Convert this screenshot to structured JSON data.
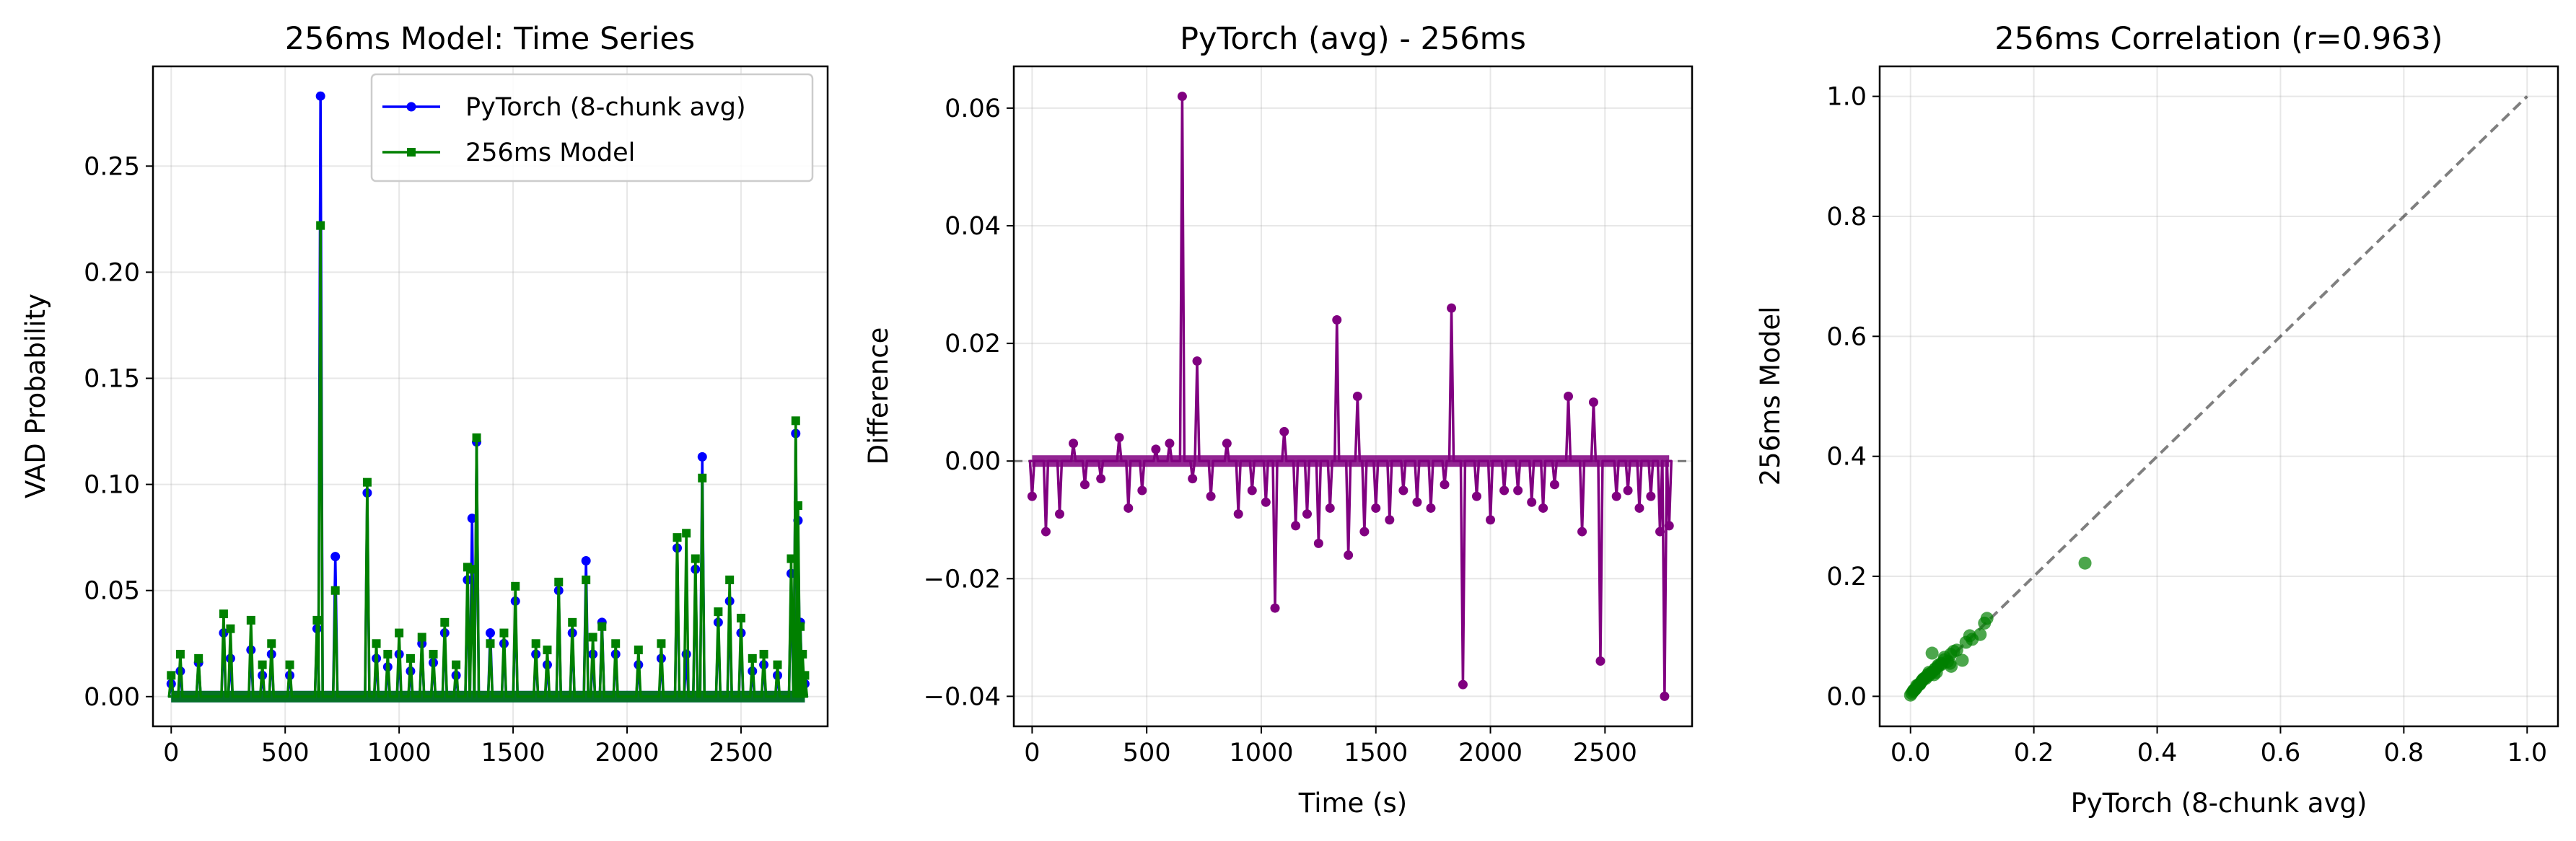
{
  "chart_data": [
    {
      "type": "line",
      "title": "256ms Model: Time Series",
      "xlabel": "",
      "ylabel": "VAD Probability",
      "xlim": [
        -80,
        2880
      ],
      "ylim": [
        -0.014,
        0.297
      ],
      "xticks": [
        0,
        500,
        1000,
        1500,
        2000,
        2500
      ],
      "xtick_labels": [
        "0",
        "500",
        "1000",
        "1500",
        "2000",
        "2500"
      ],
      "yticks": [
        0.0,
        0.05,
        0.1,
        0.15,
        0.2,
        0.25
      ],
      "ytick_labels": [
        "0.00",
        "0.05",
        "0.10",
        "0.15",
        "0.20",
        "0.25"
      ],
      "grid": true,
      "legend": "upper right",
      "series": [
        {
          "name": "PyTorch (8-chunk avg)",
          "color": "#0000ff",
          "marker": "circle",
          "style": "stem",
          "x": [
            0,
            40,
            120,
            230,
            260,
            350,
            400,
            440,
            520,
            640,
            655,
            720,
            860,
            900,
            950,
            1000,
            1050,
            1100,
            1150,
            1200,
            1250,
            1300,
            1320,
            1340,
            1400,
            1460,
            1510,
            1600,
            1650,
            1700,
            1760,
            1820,
            1850,
            1890,
            1950,
            2050,
            2150,
            2220,
            2260,
            2300,
            2330,
            2400,
            2450,
            2500,
            2550,
            2600,
            2660,
            2720,
            2740,
            2750,
            2760,
            2770,
            2780
          ],
          "y": [
            0.006,
            0.012,
            0.016,
            0.03,
            0.018,
            0.022,
            0.01,
            0.02,
            0.01,
            0.032,
            0.283,
            0.066,
            0.096,
            0.018,
            0.014,
            0.02,
            0.012,
            0.025,
            0.016,
            0.03,
            0.01,
            0.055,
            0.084,
            0.12,
            0.03,
            0.025,
            0.045,
            0.02,
            0.015,
            0.05,
            0.03,
            0.064,
            0.02,
            0.035,
            0.02,
            0.015,
            0.018,
            0.07,
            0.02,
            0.06,
            0.113,
            0.035,
            0.045,
            0.03,
            0.012,
            0.015,
            0.01,
            0.058,
            0.124,
            0.083,
            0.035,
            0.01,
            0.006
          ]
        },
        {
          "name": "256ms Model",
          "color": "#008000",
          "marker": "square",
          "style": "stem",
          "x": [
            0,
            40,
            120,
            230,
            260,
            350,
            400,
            440,
            520,
            640,
            655,
            720,
            860,
            900,
            950,
            1000,
            1050,
            1100,
            1150,
            1200,
            1250,
            1300,
            1320,
            1340,
            1400,
            1460,
            1510,
            1600,
            1650,
            1700,
            1760,
            1820,
            1850,
            1890,
            1950,
            2050,
            2150,
            2220,
            2260,
            2300,
            2330,
            2400,
            2450,
            2500,
            2550,
            2600,
            2660,
            2720,
            2740,
            2750,
            2760,
            2770,
            2780
          ],
          "y": [
            0.01,
            0.02,
            0.018,
            0.039,
            0.032,
            0.036,
            0.015,
            0.025,
            0.015,
            0.036,
            0.222,
            0.05,
            0.101,
            0.025,
            0.02,
            0.03,
            0.018,
            0.028,
            0.02,
            0.035,
            0.015,
            0.061,
            0.06,
            0.122,
            0.025,
            0.03,
            0.052,
            0.025,
            0.022,
            0.054,
            0.035,
            0.055,
            0.028,
            0.033,
            0.025,
            0.022,
            0.025,
            0.075,
            0.077,
            0.065,
            0.103,
            0.04,
            0.055,
            0.037,
            0.018,
            0.02,
            0.015,
            0.065,
            0.13,
            0.09,
            0.033,
            0.02,
            0.01
          ]
        }
      ]
    },
    {
      "type": "line",
      "title": "PyTorch (avg) - 256ms",
      "xlabel": "Time (s)",
      "ylabel": "Difference",
      "xlim": [
        -80,
        2880
      ],
      "ylim": [
        -0.0451,
        0.0671
      ],
      "xticks": [
        0,
        500,
        1000,
        1500,
        2000,
        2500
      ],
      "xtick_labels": [
        "0",
        "500",
        "1000",
        "1500",
        "2000",
        "2500"
      ],
      "yticks": [
        -0.04,
        -0.02,
        0.0,
        0.02,
        0.04,
        0.06
      ],
      "ytick_labels": [
        "−0.04",
        "−0.02",
        "0.00",
        "0.02",
        "0.04",
        "0.06"
      ],
      "grid": true,
      "zero_line": true,
      "series": [
        {
          "name": "",
          "color": "#800080",
          "marker": "circle",
          "style": "stem",
          "x": [
            0,
            60,
            120,
            180,
            230,
            300,
            380,
            420,
            480,
            540,
            600,
            655,
            700,
            720,
            780,
            850,
            900,
            960,
            1020,
            1060,
            1100,
            1150,
            1200,
            1250,
            1300,
            1330,
            1380,
            1420,
            1450,
            1500,
            1560,
            1620,
            1680,
            1740,
            1800,
            1830,
            1880,
            1940,
            2000,
            2060,
            2120,
            2180,
            2230,
            2280,
            2340,
            2400,
            2450,
            2480,
            2550,
            2600,
            2650,
            2700,
            2740,
            2760,
            2780
          ],
          "y": [
            -0.006,
            -0.012,
            -0.009,
            0.003,
            -0.004,
            -0.003,
            0.004,
            -0.008,
            -0.005,
            0.002,
            0.003,
            0.062,
            -0.003,
            0.017,
            -0.006,
            0.003,
            -0.009,
            -0.005,
            -0.007,
            -0.025,
            0.005,
            -0.011,
            -0.009,
            -0.014,
            -0.008,
            0.024,
            -0.016,
            0.011,
            -0.012,
            -0.008,
            -0.01,
            -0.005,
            -0.007,
            -0.008,
            -0.004,
            0.026,
            -0.038,
            -0.006,
            -0.01,
            -0.005,
            -0.005,
            -0.007,
            -0.008,
            -0.004,
            0.011,
            -0.012,
            0.01,
            -0.034,
            -0.006,
            -0.005,
            -0.008,
            -0.006,
            -0.012,
            -0.04,
            -0.011
          ]
        }
      ]
    },
    {
      "type": "scatter",
      "title": "256ms Correlation (r=0.963)",
      "xlabel": "PyTorch (8-chunk avg)",
      "ylabel": "256ms Model",
      "xlim": [
        -0.05,
        1.05
      ],
      "ylim": [
        -0.05,
        1.05
      ],
      "xticks": [
        0.0,
        0.2,
        0.4,
        0.6,
        0.8,
        1.0
      ],
      "xtick_labels": [
        "0.0",
        "0.2",
        "0.4",
        "0.6",
        "0.8",
        "1.0"
      ],
      "yticks": [
        0.0,
        0.2,
        0.4,
        0.6,
        0.8,
        1.0
      ],
      "ytick_labels": [
        "0.0",
        "0.2",
        "0.4",
        "0.6",
        "0.8",
        "1.0"
      ],
      "grid": true,
      "diagonal": [
        [
          0,
          0
        ],
        [
          1,
          1
        ]
      ],
      "series": [
        {
          "name": "",
          "color": "#008000",
          "x": [
            0.0,
            0.002,
            0.004,
            0.006,
            0.008,
            0.01,
            0.012,
            0.014,
            0.016,
            0.018,
            0.02,
            0.022,
            0.025,
            0.028,
            0.03,
            0.032,
            0.035,
            0.038,
            0.04,
            0.042,
            0.045,
            0.05,
            0.055,
            0.06,
            0.064,
            0.066,
            0.07,
            0.075,
            0.084,
            0.09,
            0.096,
            0.1,
            0.113,
            0.12,
            0.124,
            0.283,
            0.005,
            0.015,
            0.025,
            0.035,
            0.045,
            0.055,
            0.065,
            0.01,
            0.02,
            0.03,
            0.04,
            0.05
          ],
          "y": [
            0.002,
            0.005,
            0.008,
            0.01,
            0.012,
            0.015,
            0.018,
            0.02,
            0.022,
            0.025,
            0.028,
            0.03,
            0.032,
            0.036,
            0.035,
            0.038,
            0.04,
            0.036,
            0.045,
            0.04,
            0.05,
            0.055,
            0.061,
            0.058,
            0.055,
            0.05,
            0.075,
            0.077,
            0.06,
            0.09,
            0.101,
            0.095,
            0.103,
            0.122,
            0.13,
            0.222,
            0.01,
            0.02,
            0.03,
            0.072,
            0.052,
            0.065,
            0.07,
            0.018,
            0.027,
            0.04,
            0.046,
            0.053
          ]
        }
      ]
    }
  ]
}
